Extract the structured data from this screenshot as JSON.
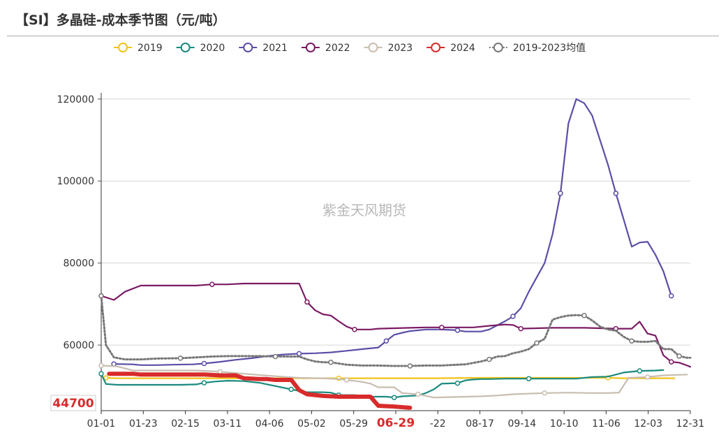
{
  "title": "【SI】多晶硅-成本季节图（元/吨）",
  "watermark": "紫金天风期货",
  "chart_data": {
    "type": "line",
    "title": "【SI】多晶硅-成本季节图（元/吨）",
    "xlabel": "",
    "ylabel": "",
    "ylim": [
      44000,
      121500
    ],
    "y_ticks": [
      60000,
      80000,
      100000,
      120000
    ],
    "x_tick_labels": [
      "01-01",
      "01-23",
      "02-15",
      "03-11",
      "04-06",
      "05-02",
      "05-29",
      "06-29",
      "-22",
      "08-17",
      "09-14",
      "10-10",
      "11-06",
      "12-03",
      "12-31"
    ],
    "highlight_tick": "06-29",
    "current_value_label": "44700",
    "grid": "horizontal",
    "legend_position": "top",
    "series": [
      {
        "name": "2019",
        "color": "#f2c21a",
        "dotted": false,
        "points": [
          [
            3,
            52000
          ],
          [
            10,
            51900
          ],
          [
            30,
            51900
          ],
          [
            60,
            51900
          ],
          [
            90,
            51900
          ],
          [
            120,
            51900
          ],
          [
            150,
            51900
          ],
          [
            180,
            51900
          ],
          [
            210,
            51900
          ],
          [
            240,
            52000
          ],
          [
            270,
            52000
          ],
          [
            300,
            52000
          ],
          [
            320,
            52000
          ],
          [
            330,
            51900
          ],
          [
            350,
            51900
          ],
          [
            362,
            51900
          ]
        ]
      },
      {
        "name": "2020",
        "color": "#1a8a7e",
        "dotted": false,
        "points": [
          [
            0,
            53000
          ],
          [
            3,
            50500
          ],
          [
            10,
            50300
          ],
          [
            30,
            50300
          ],
          [
            50,
            50300
          ],
          [
            60,
            50400
          ],
          [
            65,
            50800
          ],
          [
            72,
            51100
          ],
          [
            80,
            51300
          ],
          [
            90,
            51200
          ],
          [
            100,
            50800
          ],
          [
            110,
            50000
          ],
          [
            120,
            49200
          ],
          [
            125,
            48800
          ],
          [
            130,
            48500
          ],
          [
            135,
            48500
          ],
          [
            140,
            48500
          ],
          [
            145,
            48400
          ],
          [
            150,
            47800
          ],
          [
            155,
            47800
          ],
          [
            160,
            47800
          ],
          [
            165,
            47600
          ],
          [
            170,
            47400
          ],
          [
            180,
            47400
          ],
          [
            185,
            47200
          ],
          [
            190,
            47500
          ],
          [
            200,
            47700
          ],
          [
            205,
            48300
          ],
          [
            210,
            49200
          ],
          [
            215,
            50600
          ],
          [
            225,
            50700
          ],
          [
            230,
            51400
          ],
          [
            235,
            51600
          ],
          [
            240,
            51700
          ],
          [
            245,
            51700
          ],
          [
            255,
            51800
          ],
          [
            270,
            51800
          ],
          [
            285,
            51800
          ],
          [
            300,
            51800
          ],
          [
            310,
            52200
          ],
          [
            320,
            52300
          ],
          [
            330,
            53300
          ],
          [
            340,
            53700
          ],
          [
            350,
            53800
          ],
          [
            355,
            53900
          ]
        ]
      },
      {
        "name": "2021",
        "color": "#5a4ea6",
        "dotted": false,
        "points": [
          [
            8,
            55400
          ],
          [
            20,
            55300
          ],
          [
            25,
            55100
          ],
          [
            35,
            55100
          ],
          [
            45,
            55200
          ],
          [
            58,
            55300
          ],
          [
            65,
            55500
          ],
          [
            75,
            55900
          ],
          [
            85,
            56400
          ],
          [
            95,
            56800
          ],
          [
            105,
            57300
          ],
          [
            115,
            57700
          ],
          [
            125,
            57900
          ],
          [
            135,
            58000
          ],
          [
            145,
            58200
          ],
          [
            155,
            58600
          ],
          [
            165,
            59000
          ],
          [
            175,
            59400
          ],
          [
            180,
            61000
          ],
          [
            185,
            62500
          ],
          [
            190,
            63000
          ],
          [
            195,
            63400
          ],
          [
            205,
            63800
          ],
          [
            215,
            63800
          ],
          [
            225,
            63600
          ],
          [
            230,
            63300
          ],
          [
            240,
            63300
          ],
          [
            245,
            63800
          ],
          [
            250,
            64800
          ],
          [
            255,
            65800
          ],
          [
            260,
            67000
          ],
          [
            265,
            69000
          ],
          [
            270,
            73000
          ],
          [
            275,
            76500
          ],
          [
            280,
            80000
          ],
          [
            285,
            87000
          ],
          [
            290,
            97000
          ],
          [
            295,
            114000
          ],
          [
            300,
            120000
          ],
          [
            305,
            119000
          ],
          [
            310,
            116000
          ],
          [
            320,
            104000
          ],
          [
            325,
            97000
          ],
          [
            335,
            84000
          ],
          [
            340,
            85000
          ],
          [
            345,
            85200
          ],
          [
            350,
            82000
          ],
          [
            355,
            78000
          ],
          [
            360,
            72000
          ]
        ]
      },
      {
        "name": "2022",
        "color": "#7b1a63",
        "dotted": false,
        "points": [
          [
            0,
            72000
          ],
          [
            8,
            71000
          ],
          [
            15,
            73000
          ],
          [
            25,
            74500
          ],
          [
            45,
            74500
          ],
          [
            60,
            74500
          ],
          [
            70,
            74800
          ],
          [
            80,
            74800
          ],
          [
            90,
            75000
          ],
          [
            100,
            75000
          ],
          [
            110,
            75000
          ],
          [
            125,
            75000
          ],
          [
            130,
            70500
          ],
          [
            135,
            68500
          ],
          [
            140,
            67500
          ],
          [
            145,
            67200
          ],
          [
            150,
            65800
          ],
          [
            155,
            64500
          ],
          [
            160,
            63800
          ],
          [
            170,
            63800
          ],
          [
            175,
            64000
          ],
          [
            185,
            64100
          ],
          [
            195,
            64200
          ],
          [
            205,
            64300
          ],
          [
            215,
            64300
          ],
          [
            225,
            64300
          ],
          [
            235,
            64300
          ],
          [
            245,
            64700
          ],
          [
            255,
            65000
          ],
          [
            260,
            64900
          ],
          [
            265,
            64000
          ],
          [
            275,
            64100
          ],
          [
            285,
            64200
          ],
          [
            295,
            64200
          ],
          [
            305,
            64200
          ],
          [
            315,
            64100
          ],
          [
            325,
            64000
          ],
          [
            335,
            64000
          ],
          [
            340,
            65700
          ],
          [
            345,
            62800
          ],
          [
            350,
            62300
          ],
          [
            355,
            57500
          ],
          [
            360,
            55900
          ],
          [
            365,
            55700
          ],
          [
            370,
            55000
          ],
          [
            372,
            54700
          ]
        ]
      },
      {
        "name": "2023",
        "color": "#c8bdb0",
        "dotted": false,
        "points": [
          [
            0,
            55000
          ],
          [
            10,
            54800
          ],
          [
            20,
            53800
          ],
          [
            30,
            53800
          ],
          [
            45,
            53800
          ],
          [
            60,
            53800
          ],
          [
            75,
            53500
          ],
          [
            90,
            53000
          ],
          [
            110,
            52400
          ],
          [
            125,
            52000
          ],
          [
            140,
            51900
          ],
          [
            150,
            51700
          ],
          [
            155,
            51500
          ],
          [
            165,
            51000
          ],
          [
            170,
            50600
          ],
          [
            175,
            49700
          ],
          [
            185,
            49700
          ],
          [
            190,
            48300
          ],
          [
            200,
            48000
          ],
          [
            210,
            47200
          ],
          [
            220,
            47300
          ],
          [
            240,
            47500
          ],
          [
            250,
            47700
          ],
          [
            260,
            48000
          ],
          [
            280,
            48300
          ],
          [
            295,
            48400
          ],
          [
            310,
            48300
          ],
          [
            320,
            48300
          ],
          [
            327,
            48400
          ],
          [
            333,
            52000
          ],
          [
            345,
            52200
          ],
          [
            355,
            52600
          ],
          [
            370,
            52800
          ]
        ]
      },
      {
        "name": "2024",
        "color": "#d82b2b",
        "dotted": false,
        "highlight": true,
        "points": [
          [
            5,
            53000
          ],
          [
            20,
            53000
          ],
          [
            25,
            52800
          ],
          [
            35,
            52800
          ],
          [
            45,
            52800
          ],
          [
            55,
            52800
          ],
          [
            65,
            52800
          ],
          [
            75,
            52600
          ],
          [
            85,
            52600
          ],
          [
            90,
            51900
          ],
          [
            100,
            51700
          ],
          [
            105,
            51700
          ],
          [
            110,
            51500
          ],
          [
            115,
            51500
          ],
          [
            120,
            51500
          ],
          [
            125,
            49000
          ],
          [
            130,
            48000
          ],
          [
            140,
            47600
          ],
          [
            150,
            47400
          ],
          [
            160,
            47400
          ],
          [
            170,
            47400
          ],
          [
            175,
            45200
          ],
          [
            185,
            45000
          ],
          [
            195,
            44700
          ]
        ]
      },
      {
        "name": "2019-2023均值",
        "color": "#777777",
        "dotted": true,
        "points": [
          [
            0,
            72000
          ],
          [
            3,
            60000
          ],
          [
            8,
            57000
          ],
          [
            15,
            56500
          ],
          [
            25,
            56500
          ],
          [
            35,
            56700
          ],
          [
            50,
            56800
          ],
          [
            60,
            57000
          ],
          [
            70,
            57200
          ],
          [
            80,
            57300
          ],
          [
            90,
            57300
          ],
          [
            100,
            57300
          ],
          [
            110,
            57200
          ],
          [
            120,
            57200
          ],
          [
            125,
            57200
          ],
          [
            130,
            56500
          ],
          [
            135,
            56000
          ],
          [
            140,
            55800
          ],
          [
            145,
            55800
          ],
          [
            150,
            55500
          ],
          [
            155,
            55200
          ],
          [
            165,
            55000
          ],
          [
            175,
            55000
          ],
          [
            185,
            54900
          ],
          [
            195,
            54900
          ],
          [
            205,
            55000
          ],
          [
            215,
            55000
          ],
          [
            225,
            55200
          ],
          [
            230,
            55300
          ],
          [
            240,
            56000
          ],
          [
            245,
            56500
          ],
          [
            250,
            57200
          ],
          [
            255,
            57300
          ],
          [
            260,
            58000
          ],
          [
            265,
            58400
          ],
          [
            270,
            59000
          ],
          [
            275,
            60500
          ],
          [
            280,
            61500
          ],
          [
            285,
            66200
          ],
          [
            290,
            66800
          ],
          [
            295,
            67200
          ],
          [
            300,
            67300
          ],
          [
            305,
            67200
          ],
          [
            310,
            66000
          ],
          [
            315,
            64500
          ],
          [
            320,
            63800
          ],
          [
            325,
            63500
          ],
          [
            330,
            62000
          ],
          [
            335,
            61000
          ],
          [
            340,
            60800
          ],
          [
            345,
            60800
          ],
          [
            350,
            61000
          ],
          [
            355,
            59000
          ],
          [
            360,
            59000
          ],
          [
            365,
            57300
          ],
          [
            370,
            56900
          ],
          [
            372,
            56900
          ]
        ]
      }
    ]
  }
}
